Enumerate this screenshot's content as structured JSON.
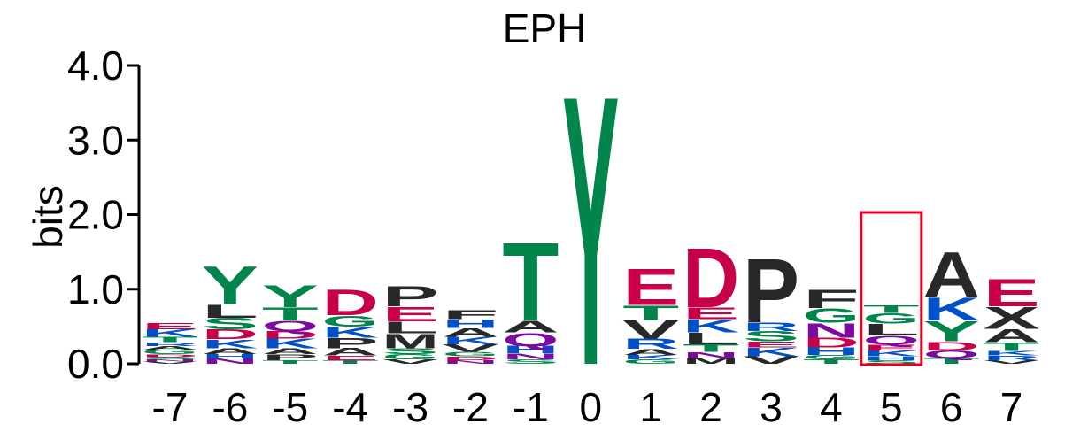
{
  "colors": {
    "acidic": "#c8004a",
    "basic": "#0050c8",
    "hydrophobic": "#282828",
    "polar": "#00864a",
    "amide": "#7a0aa0",
    "highlight": "#e8001c"
  },
  "chart_data": {
    "type": "sequence-logo",
    "title": "EPH",
    "ylabel": "bits",
    "ylim": [
      0,
      4.0
    ],
    "yticks": [
      "0.0",
      "1.0",
      "2.0",
      "3.0",
      "4.0"
    ],
    "positions": [
      "-7",
      "-6",
      "-5",
      "-4",
      "-3",
      "-2",
      "-1",
      "0",
      "1",
      "2",
      "3",
      "4",
      "5",
      "6",
      "7"
    ],
    "highlight_position": "5",
    "stacks": [
      [
        {
          "l": "V",
          "h": 0.03
        },
        {
          "l": "N",
          "h": 0.03
        },
        {
          "l": "S",
          "h": 0.03
        },
        {
          "l": "D",
          "h": 0.04
        },
        {
          "l": "G",
          "h": 0.06
        },
        {
          "l": "A",
          "h": 0.05
        },
        {
          "l": "R",
          "h": 0.05
        },
        {
          "l": "T",
          "h": 0.07
        },
        {
          "l": "K",
          "h": 0.1
        },
        {
          "l": "E",
          "h": 0.09
        }
      ],
      [
        {
          "l": "N",
          "h": 0.07
        },
        {
          "l": "H",
          "h": 0.06
        },
        {
          "l": "A",
          "h": 0.08
        },
        {
          "l": "K",
          "h": 0.12
        },
        {
          "l": "D",
          "h": 0.13
        },
        {
          "l": "S",
          "h": 0.16
        },
        {
          "l": "L",
          "h": 0.18
        },
        {
          "l": "Y",
          "h": 0.52
        }
      ],
      [
        {
          "l": "T",
          "h": 0.05
        },
        {
          "l": "P",
          "h": 0.08
        },
        {
          "l": "A",
          "h": 0.08
        },
        {
          "l": "K",
          "h": 0.13
        },
        {
          "l": "D",
          "h": 0.1
        },
        {
          "l": "Q",
          "h": 0.14
        },
        {
          "l": "T",
          "h": 0.18
        },
        {
          "l": "Y",
          "h": 0.3
        }
      ],
      [
        {
          "l": "T",
          "h": 0.05
        },
        {
          "l": "E",
          "h": 0.06
        },
        {
          "l": "A",
          "h": 0.1
        },
        {
          "l": "P",
          "h": 0.14
        },
        {
          "l": "K",
          "h": 0.15
        },
        {
          "l": "G",
          "h": 0.15
        },
        {
          "l": "D",
          "h": 0.36
        }
      ],
      [
        {
          "l": "V",
          "h": 0.06
        },
        {
          "l": "G",
          "h": 0.07
        },
        {
          "l": "S",
          "h": 0.08
        },
        {
          "l": "M",
          "h": 0.2
        },
        {
          "l": "L",
          "h": 0.16
        },
        {
          "l": "E",
          "h": 0.2
        },
        {
          "l": "P",
          "h": 0.28
        }
      ],
      [
        {
          "l": "N",
          "h": 0.05
        },
        {
          "l": "D",
          "h": 0.05
        },
        {
          "l": "G",
          "h": 0.06
        },
        {
          "l": "V",
          "h": 0.1
        },
        {
          "l": "K",
          "h": 0.1
        },
        {
          "l": "A",
          "h": 0.12
        },
        {
          "l": "H",
          "h": 0.12
        },
        {
          "l": "F",
          "h": 0.13
        }
      ],
      [
        {
          "l": "S",
          "h": 0.06
        },
        {
          "l": "N",
          "h": 0.08
        },
        {
          "l": "H",
          "h": 0.1
        },
        {
          "l": "Q",
          "h": 0.18
        },
        {
          "l": "A",
          "h": 0.16
        },
        {
          "l": "T",
          "h": 1.08
        }
      ],
      [
        {
          "l": "Y",
          "h": 3.72
        }
      ],
      [
        {
          "l": "G",
          "h": 0.06
        },
        {
          "l": "K",
          "h": 0.06
        },
        {
          "l": "A",
          "h": 0.08
        },
        {
          "l": "R",
          "h": 0.14
        },
        {
          "l": "V",
          "h": 0.25
        },
        {
          "l": "T",
          "h": 0.2
        },
        {
          "l": "E",
          "h": 0.5
        }
      ],
      [
        {
          "l": "M",
          "h": 0.08
        },
        {
          "l": "N",
          "h": 0.08
        },
        {
          "l": "T",
          "h": 0.1
        },
        {
          "l": "L",
          "h": 0.16
        },
        {
          "l": "K",
          "h": 0.18
        },
        {
          "l": "E",
          "h": 0.16
        },
        {
          "l": "D",
          "h": 0.82
        }
      ],
      [
        {
          "l": "V",
          "h": 0.1
        },
        {
          "l": "K",
          "h": 0.12
        },
        {
          "l": "E",
          "h": 0.08
        },
        {
          "l": "S",
          "h": 0.14
        },
        {
          "l": "R",
          "h": 0.12
        },
        {
          "l": "P",
          "h": 0.88
        }
      ],
      [
        {
          "l": "T",
          "h": 0.06
        },
        {
          "l": "G",
          "h": 0.06
        },
        {
          "l": "H",
          "h": 0.1
        },
        {
          "l": "D",
          "h": 0.13
        },
        {
          "l": "N",
          "h": 0.2
        },
        {
          "l": "G",
          "h": 0.2
        },
        {
          "l": "F",
          "h": 0.25
        }
      ],
      [
        {
          "l": "S",
          "h": 0.05
        },
        {
          "l": "H",
          "h": 0.05
        },
        {
          "l": "K",
          "h": 0.08
        },
        {
          "l": "E",
          "h": 0.08
        },
        {
          "l": "Q",
          "h": 0.12
        },
        {
          "l": "L",
          "h": 0.16
        },
        {
          "l": "G",
          "h": 0.14
        },
        {
          "l": "T",
          "h": 0.1
        }
      ],
      [
        {
          "l": "T",
          "h": 0.08
        },
        {
          "l": "Q",
          "h": 0.1
        },
        {
          "l": "D",
          "h": 0.12
        },
        {
          "l": "Y",
          "h": 0.28
        },
        {
          "l": "K",
          "h": 0.32
        },
        {
          "l": "A",
          "h": 0.62
        }
      ],
      [
        {
          "l": "V",
          "h": 0.05
        },
        {
          "l": "R",
          "h": 0.06
        },
        {
          "l": "K",
          "h": 0.06
        },
        {
          "l": "T",
          "h": 0.12
        },
        {
          "l": "A",
          "h": 0.18
        },
        {
          "l": "X",
          "h": 0.3
        },
        {
          "l": "E",
          "h": 0.38
        }
      ]
    ]
  }
}
